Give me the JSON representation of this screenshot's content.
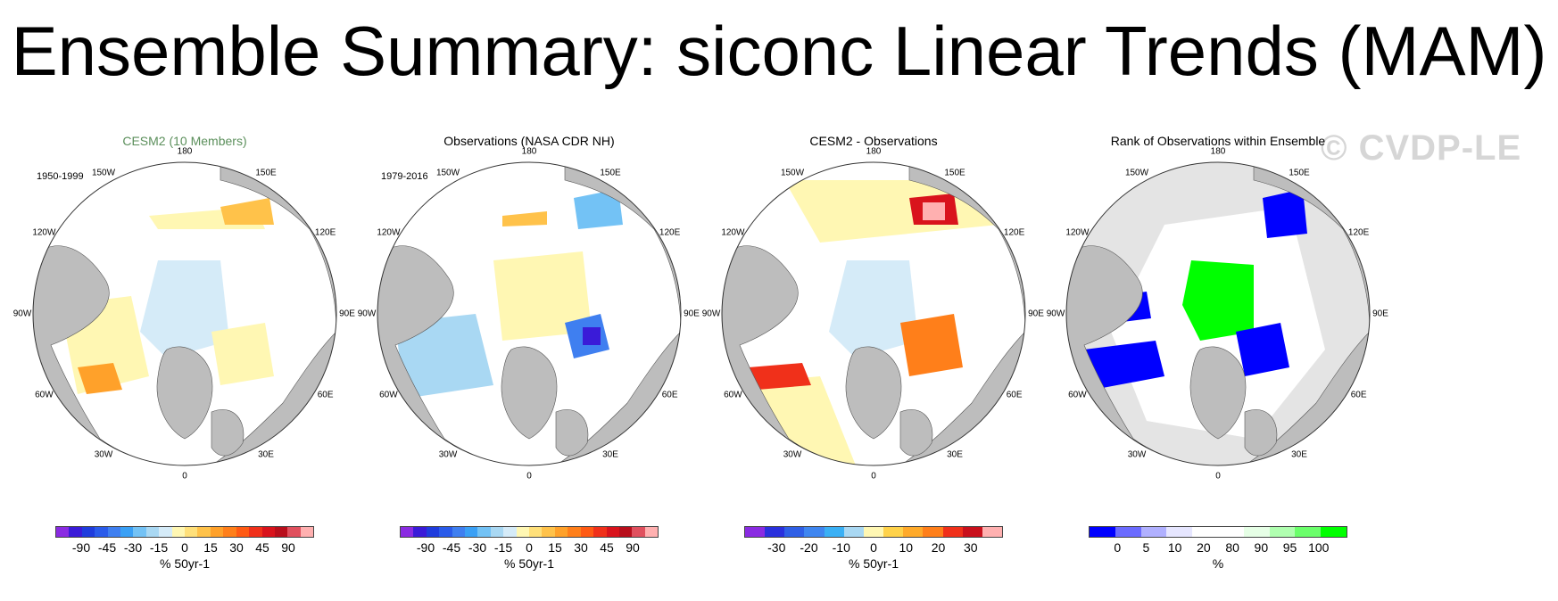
{
  "title": "Ensemble Summary: siconc Linear Trends (MAM)",
  "watermark": "© CVDP-LE",
  "colors": {
    "land": "#bdbdbd",
    "ocean": "#ffffff",
    "title_model": "#5b8f5b",
    "rank_outside": "#e4e4e4"
  },
  "panels": [
    {
      "title": "CESM2 (10 Members)",
      "period": "1950-1999",
      "lon_labels": [
        "180",
        "150E",
        "120E",
        "90E",
        "60E",
        "30E",
        "0",
        "30W",
        "60W",
        "90W",
        "120W",
        "150W"
      ],
      "colorbar": {
        "colors": [
          "#8a2be2",
          "#3a1bd8",
          "#1f3cdd",
          "#2a5bea",
          "#3f7ff0",
          "#3aa0f5",
          "#73c2f5",
          "#a9d8f3",
          "#d5ebf8",
          "#fff7b3",
          "#ffe07a",
          "#ffc24a",
          "#ffa12a",
          "#ff7f1a",
          "#ff5a14",
          "#f0301a",
          "#d9131c",
          "#b80e1b",
          "#e0505e",
          "#ffb0b0"
        ],
        "ticks": [
          "-90",
          "-45",
          "-30",
          "-15",
          "0",
          "15",
          "30",
          "45",
          "90"
        ],
        "units": "% 50yr-1"
      }
    },
    {
      "title": "Observations (NASA CDR NH)",
      "period": "1979-2016",
      "lon_labels": [
        "180",
        "150E",
        "120E",
        "90E",
        "60E",
        "30E",
        "0",
        "30W",
        "60W",
        "90W",
        "120W",
        "150W"
      ],
      "colorbar": {
        "colors": [
          "#8a2be2",
          "#3a1bd8",
          "#1f3cdd",
          "#2a5bea",
          "#3f7ff0",
          "#3aa0f5",
          "#73c2f5",
          "#a9d8f3",
          "#d5ebf8",
          "#fff7b3",
          "#ffe07a",
          "#ffc24a",
          "#ffa12a",
          "#ff7f1a",
          "#ff5a14",
          "#f0301a",
          "#d9131c",
          "#b80e1b",
          "#e0505e",
          "#ffb0b0"
        ],
        "ticks": [
          "-90",
          "-45",
          "-30",
          "-15",
          "0",
          "15",
          "30",
          "45",
          "90"
        ],
        "units": "% 50yr-1"
      }
    },
    {
      "title": "CESM2 - Observations",
      "period": "",
      "lon_labels": [
        "180",
        "150E",
        "120E",
        "90E",
        "60E",
        "30E",
        "0",
        "30W",
        "60W",
        "90W",
        "120W",
        "150W"
      ],
      "colorbar": {
        "colors": [
          "#8a2be2",
          "#2a30dd",
          "#2f5fe6",
          "#3f86f0",
          "#3ab0f5",
          "#a9d8f3",
          "#fff7b3",
          "#ffd24a",
          "#ffaa2a",
          "#ff7f1a",
          "#f0301a",
          "#c9101c",
          "#ffb0b0"
        ],
        "ticks": [
          "-30",
          "-20",
          "-10",
          "0",
          "10",
          "20",
          "30"
        ],
        "units": "% 50yr-1"
      }
    },
    {
      "title": "Rank of Observations within Ensemble",
      "period": "",
      "lon_labels": [
        "180",
        "150E",
        "120E",
        "90E",
        "60E",
        "30E",
        "0",
        "30W",
        "60W",
        "90W",
        "120W",
        "150W"
      ],
      "colorbar": {
        "colors": [
          "#0000ff",
          "#6b6bff",
          "#b0b0ff",
          "#e6e6ff",
          "#ffffff",
          "#ffffff",
          "#e6ffe6",
          "#b0ffb0",
          "#6bff6b",
          "#00ff00"
        ],
        "ticks": [
          "0",
          "5",
          "10",
          "20",
          "80",
          "90",
          "95",
          "100"
        ],
        "units": "%"
      }
    }
  ]
}
